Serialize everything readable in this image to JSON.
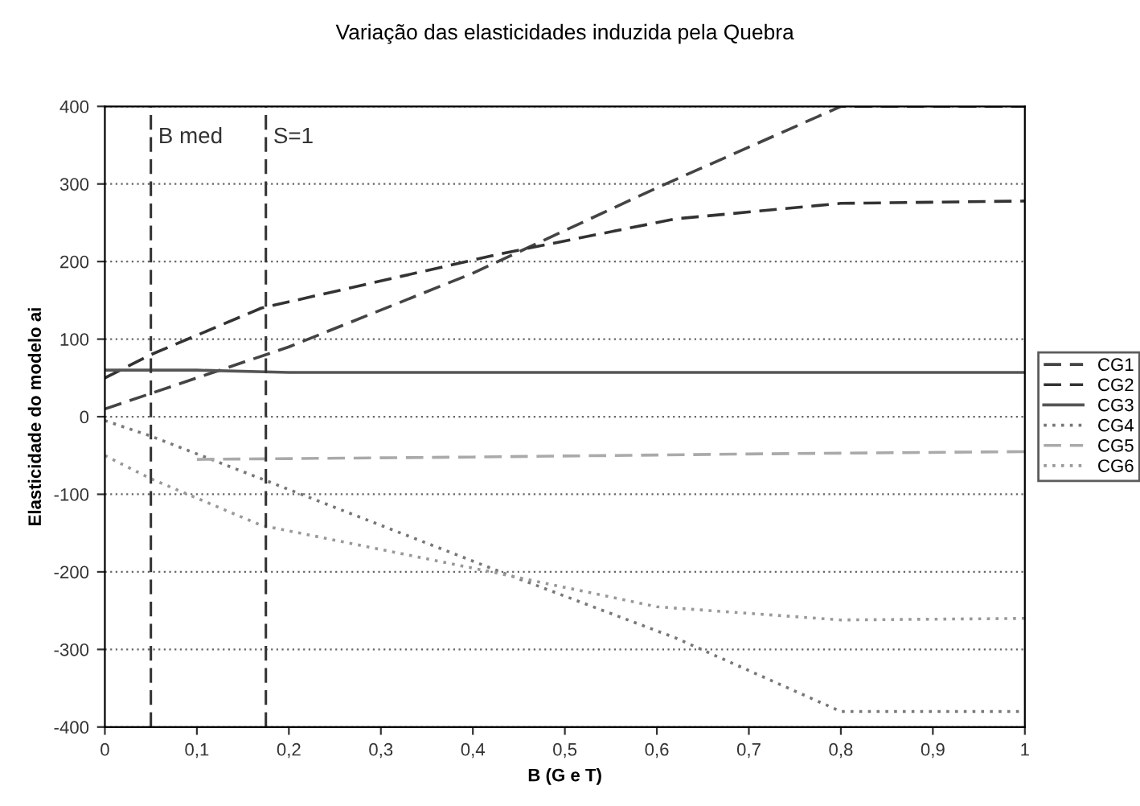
{
  "chart_data": {
    "type": "line",
    "title": "Variação das elasticidades induzida pela Quebra",
    "xlabel": "B (G e T)",
    "ylabel": "Elasticidade do modelo ai",
    "xlim": [
      0,
      1
    ],
    "xticks": [
      0,
      {
        "value": 0.1,
        "label": "0,1"
      },
      {
        "value": 0.2,
        "label": "0,2"
      },
      {
        "value": 0.3,
        "label": "0,3"
      },
      {
        "value": 0.4,
        "label": "0,4"
      },
      {
        "value": 0.5,
        "label": "0,5"
      },
      {
        "value": 0.6,
        "label": "0,6"
      },
      {
        "value": 0.7,
        "label": "0,7"
      },
      {
        "value": 0.8,
        "label": "0,8"
      },
      {
        "value": 0.9,
        "label": "0,9"
      },
      1
    ],
    "ylim": [
      -400,
      400
    ],
    "yticks": [
      -400,
      -300,
      -200,
      -100,
      0,
      100,
      200,
      300,
      400
    ],
    "grid": "y",
    "legend": "right",
    "ref_lines": [
      {
        "axis": "x",
        "value": 0.05,
        "color": "#333333",
        "line_style": "dashed"
      },
      {
        "axis": "x",
        "value": 0.175,
        "color": "#333333",
        "line_style": "dashed"
      }
    ],
    "annotations": [
      {
        "text": "B med",
        "x": 0.05,
        "y": 360
      },
      {
        "text": "S=1",
        "x": 0.175,
        "y": 360
      }
    ],
    "series": [
      {
        "name": "CG1",
        "color": "#444444",
        "line_style": "dashed",
        "x": [
          0,
          0.2,
          0.4,
          0.6,
          0.8,
          1
        ],
        "values": [
          10,
          90,
          185,
          295,
          400,
          400
        ]
      },
      {
        "name": "CG2",
        "color": "#333333",
        "line_style": "dashed",
        "x": [
          0,
          0.05,
          0.17,
          0.43,
          0.62,
          0.8,
          1
        ],
        "values": [
          50,
          80,
          140,
          210,
          255,
          275,
          278
        ]
      },
      {
        "name": "CG3",
        "color": "#555555",
        "line_style": "solid",
        "x": [
          0,
          0.1,
          0.2,
          0.6,
          1
        ],
        "values": [
          60,
          60,
          57,
          57,
          57
        ]
      },
      {
        "name": "CG4",
        "color": "#777777",
        "line_style": "dotted",
        "x": [
          0,
          0.05,
          0.17,
          0.43,
          0.62,
          0.8,
          1
        ],
        "values": [
          -5,
          -25,
          -80,
          -200,
          -285,
          -380,
          -380
        ]
      },
      {
        "name": "CG5",
        "color": "#aaaaaa",
        "line_style": "dashed",
        "x": [
          0.1,
          0.4,
          0.7,
          1
        ],
        "values": [
          -55,
          -52,
          -48,
          -45
        ]
      },
      {
        "name": "CG6",
        "color": "#999999",
        "line_style": "dotted",
        "x": [
          0,
          0.05,
          0.17,
          0.42,
          0.6,
          0.8,
          1
        ],
        "values": [
          -50,
          -80,
          -140,
          -200,
          -245,
          -262,
          -260
        ]
      }
    ]
  }
}
